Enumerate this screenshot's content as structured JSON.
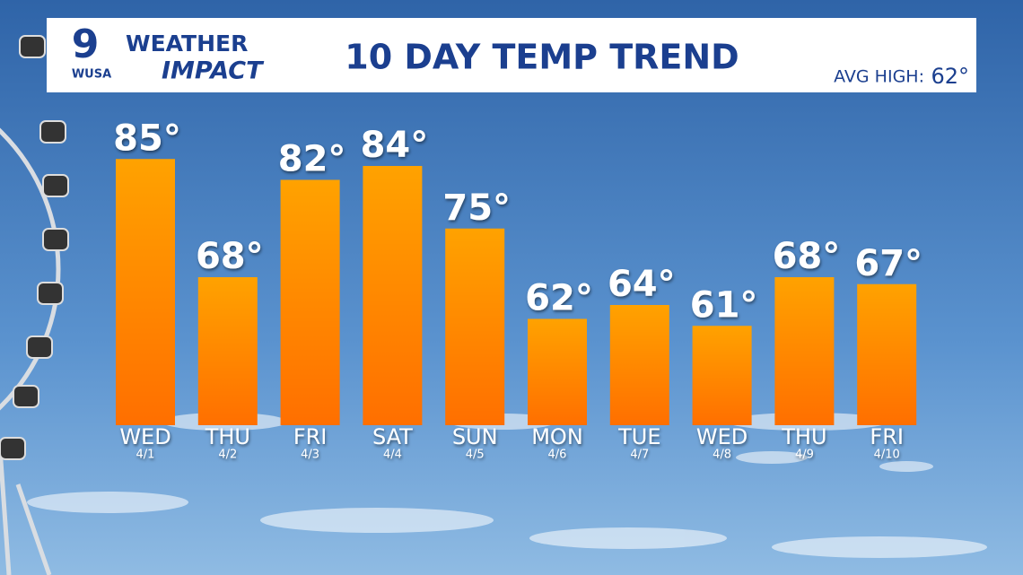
{
  "chart_data": {
    "type": "bar",
    "title": "10 DAY TEMP TREND",
    "logo_number": "9",
    "logo_station": "WUSA",
    "logo_top": "WEATHER",
    "logo_bottom": "IMPACT",
    "avg_label": "AVG HIGH:",
    "avg_value": "62°",
    "categories": [
      "WED",
      "THU",
      "FRI",
      "SAT",
      "SUN",
      "MON",
      "TUE",
      "WED",
      "THU",
      "FRI"
    ],
    "dates": [
      "4/1",
      "4/2",
      "4/3",
      "4/4",
      "4/5",
      "4/6",
      "4/7",
      "4/8",
      "4/9",
      "4/10"
    ],
    "values": [
      85,
      68,
      82,
      84,
      75,
      62,
      64,
      61,
      68,
      67
    ],
    "value_labels": [
      "85°",
      "68°",
      "82°",
      "84°",
      "75°",
      "62°",
      "64°",
      "61°",
      "68°",
      "67°"
    ],
    "color": "#ff8a00"
  }
}
